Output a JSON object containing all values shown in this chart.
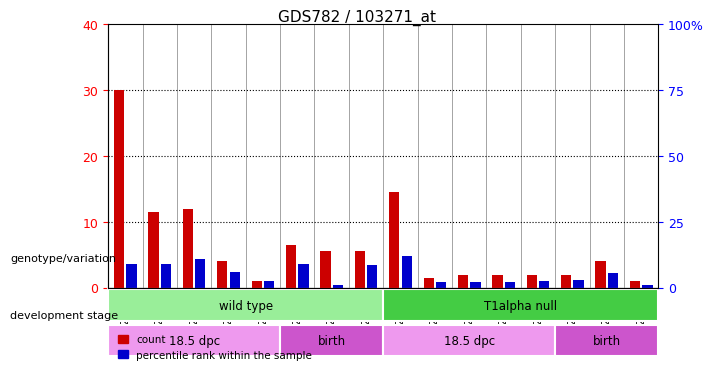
{
  "title": "GDS782 / 103271_at",
  "samples": [
    "GSM22043",
    "GSM22044",
    "GSM22045",
    "GSM22046",
    "GSM22047",
    "GSM22048",
    "GSM22049",
    "GSM22050",
    "GSM22035",
    "GSM22036",
    "GSM22037",
    "GSM22038",
    "GSM22039",
    "GSM22040",
    "GSM22041",
    "GSM22042"
  ],
  "counts": [
    30,
    11.5,
    12,
    4,
    1,
    6.5,
    5.5,
    5.5,
    14.5,
    1.5,
    2,
    2,
    2,
    2,
    4,
    1
  ],
  "percentiles": [
    9,
    9,
    11,
    6,
    2.5,
    9,
    1,
    8.5,
    12,
    2,
    2,
    2,
    2.5,
    3,
    5.5,
    1
  ],
  "ylim_left": [
    0,
    40
  ],
  "ylim_right": [
    0,
    100
  ],
  "yticks_left": [
    0,
    10,
    20,
    30,
    40
  ],
  "yticks_right": [
    0,
    25,
    50,
    75,
    100
  ],
  "yticklabels_right": [
    "0",
    "25",
    "50",
    "75",
    "100%"
  ],
  "bar_color_count": "#cc0000",
  "bar_color_pct": "#0000cc",
  "bg_plot": "#ffffff",
  "bg_xlabel": "#cccccc",
  "grid_color": "#000000",
  "genotype_groups": [
    {
      "label": "wild type",
      "start": 0,
      "end": 8,
      "color": "#99ee99"
    },
    {
      "label": "T1alpha null",
      "start": 8,
      "end": 16,
      "color": "#44cc44"
    }
  ],
  "stage_groups": [
    {
      "label": "18.5 dpc",
      "start": 0,
      "end": 5,
      "color": "#ee99ee"
    },
    {
      "label": "birth",
      "start": 5,
      "end": 8,
      "color": "#cc55cc"
    },
    {
      "label": "18.5 dpc",
      "start": 8,
      "end": 13,
      "color": "#ee99ee"
    },
    {
      "label": "birth",
      "start": 13,
      "end": 16,
      "color": "#cc55cc"
    }
  ],
  "genotype_label": "genotype/variation",
  "stage_label": "development stage",
  "legend_count": "count",
  "legend_pct": "percentile rank within the sample"
}
